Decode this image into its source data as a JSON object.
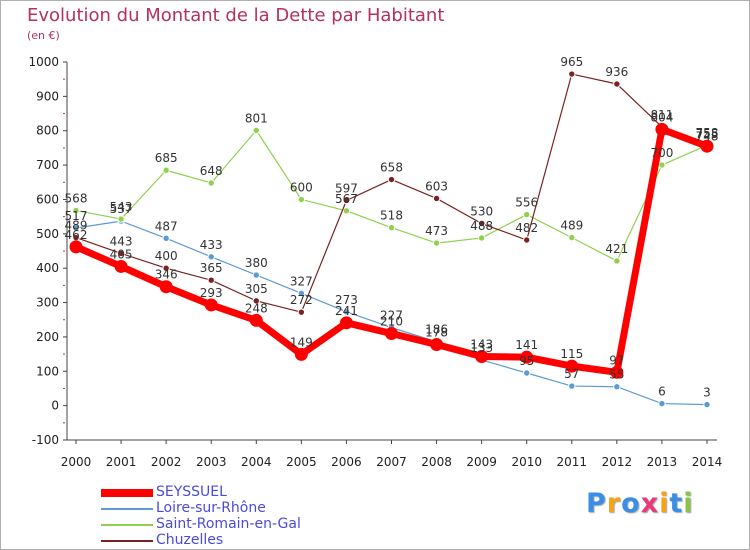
{
  "title": "Evolution du Montant de la Dette par Habitant",
  "subtitle": "(en €)",
  "brand": {
    "text": "Proxiti",
    "colors": [
      "#3a8ee6",
      "#f7a21b",
      "#3a8ee6",
      "#e63a7a",
      "#f7a21b",
      "#3a8ee6",
      "#8bc34a"
    ]
  },
  "chart_data": {
    "type": "line",
    "title": "Evolution du Montant de la Dette par Habitant",
    "ylabel": "(en €)",
    "ylim": [
      -100,
      1000
    ],
    "yticks": [
      -100,
      0,
      100,
      200,
      300,
      400,
      500,
      600,
      700,
      800,
      900,
      1000
    ],
    "grid": false,
    "legend": "bottom-left",
    "x": [
      "2000",
      "2001",
      "2002",
      "2003",
      "2004",
      "2005",
      "2006",
      "2007",
      "2008",
      "2009",
      "2010",
      "2011",
      "2012",
      "2013",
      "2014"
    ],
    "series": [
      {
        "name": "SEYSSUEL",
        "color": "#ff0000",
        "values": [
          462,
          405,
          346,
          293,
          248,
          149,
          241,
          210,
          178,
          143,
          141,
          115,
          97,
          804,
          755
        ]
      },
      {
        "name": "Loire-sur-Rhône",
        "color": "#5b9bd5",
        "values": [
          517,
          537,
          487,
          433,
          380,
          327,
          273,
          227,
          186,
          133,
          95,
          57,
          55,
          6,
          3
        ]
      },
      {
        "name": "Saint-Romain-en-Gal",
        "color": "#8fd14f",
        "values": [
          568,
          543,
          685,
          648,
          801,
          600,
          567,
          518,
          473,
          488,
          556,
          489,
          421,
          700,
          758
        ]
      },
      {
        "name": "Chuzelles",
        "color": "#7a2222",
        "values": [
          489,
          443,
          400,
          365,
          305,
          272,
          597,
          658,
          603,
          530,
          482,
          965,
          936,
          811,
          748
        ]
      }
    ]
  }
}
